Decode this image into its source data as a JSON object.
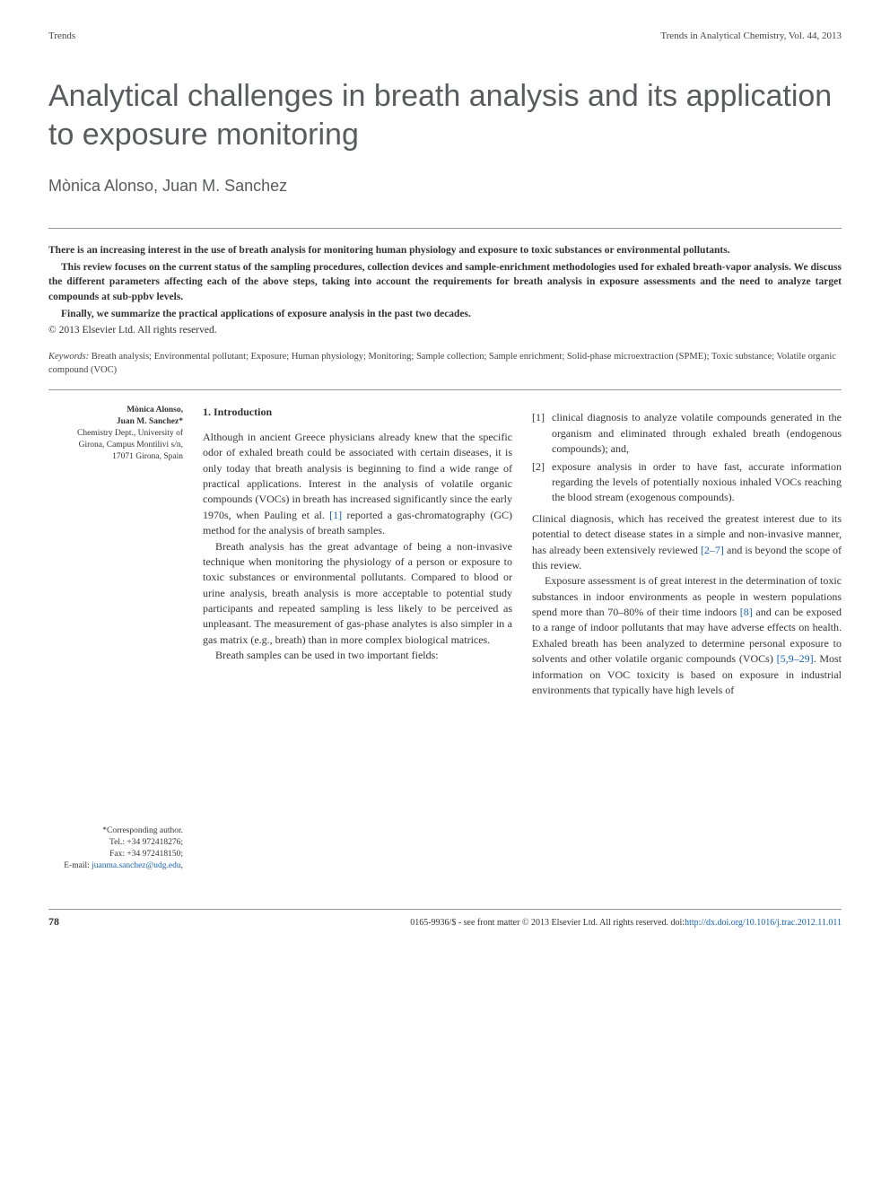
{
  "header": {
    "left": "Trends",
    "right": "Trends in Analytical Chemistry, Vol. 44, 2013"
  },
  "title": "Analytical challenges in breath analysis and its application to exposure monitoring",
  "authors": "Mònica Alonso, Juan M. Sanchez",
  "abstract": {
    "p1": "There is an increasing interest in the use of breath analysis for monitoring human physiology and exposure to toxic substances or environmental pollutants.",
    "p2": "This review focuses on the current status of the sampling procedures, collection devices and sample-enrichment methodologies used for exhaled breath-vapor analysis. We discuss the different parameters affecting each of the above steps, taking into account the requirements for breath analysis in exposure assessments and the need to analyze target compounds at sub-ppbv levels.",
    "p3": "Finally, we summarize the practical applications of exposure analysis in the past two decades.",
    "copyright": "© 2013 Elsevier Ltd. All rights reserved."
  },
  "keywords": {
    "label": "Keywords:",
    "text": " Breath analysis; Environmental pollutant; Exposure; Human physiology; Monitoring; Sample collection; Sample enrichment; Solid-phase microextraction (SPME); Toxic substance; Volatile organic compound (VOC)"
  },
  "sidebar": {
    "name1": "Mònica Alonso,",
    "name2": "Juan M. Sanchez*",
    "affil1": "Chemistry Dept., University of",
    "affil2": "Girona, Campus Montilivi s/n,",
    "affil3": "17071 Girona, Spain",
    "corr_label": "*Corresponding author.",
    "tel": "Tel.: +34 972418276;",
    "fax": "Fax: +34 972418150;",
    "email_label": "E-mail: ",
    "email": "juanma.sanchez@udg.edu",
    "email_trail": ","
  },
  "section": {
    "heading": "1. Introduction",
    "col1_p1a": "Although in ancient Greece physicians already knew that the specific odor of exhaled breath could be associated with certain diseases, it is only today that breath analysis is beginning to find a wide range of practical applications. Interest in the analysis of volatile organic compounds (VOCs) in breath has increased significantly since the early 1970s, when Pauling et al. ",
    "ref1": "[1]",
    "col1_p1b": " reported a gas-chromatography (GC) method for the analysis of breath samples.",
    "col1_p2": "Breath analysis has the great advantage of being a non-invasive technique when monitoring the physiology of a person or exposure to toxic substances or environmental pollutants. Compared to blood or urine analysis, breath analysis is more acceptable to potential study participants and repeated sampling is less likely to be perceived as unpleasant. The measurement of gas-phase analytes is also simpler in a gas matrix (e.g., breath) than in more complex biological matrices.",
    "col1_p3": "Breath samples can be used in two important fields:",
    "col2_li1": "clinical diagnosis to analyze volatile compounds generated in the organism and eliminated through exhaled breath (endogenous compounds); and,",
    "col2_li2": "exposure analysis in order to have fast, accurate information regarding the levels of potentially noxious inhaled VOCs reaching the blood stream (exogenous compounds).",
    "col2_p1a": "Clinical diagnosis, which has received the greatest interest due to its potential to detect disease states in a simple and non-invasive manner, has already been extensively reviewed ",
    "ref2_7": "[2–7]",
    "col2_p1b": " and is beyond the scope of this review.",
    "col2_p2a": "Exposure assessment is of great interest in the determination of toxic substances in indoor environments as people in western populations spend more than 70–80% of their time indoors ",
    "ref8": "[8]",
    "col2_p2b": " and can be exposed to a range of indoor pollutants that may have adverse effects on health. Exhaled breath has been analyzed to determine personal exposure to solvents and other volatile organic compounds (VOCs) ",
    "ref5_29": "[5,9–29]",
    "col2_p2c": ". Most information on VOC toxicity is based on exposure in industrial environments that typically have high levels of"
  },
  "footer": {
    "page": "78",
    "meta_a": "0165-9936/$ - see front matter © 2013 Elsevier Ltd. All rights reserved.  doi:",
    "doi": "http://dx.doi.org/10.1016/j.trac.2012.11.011"
  }
}
